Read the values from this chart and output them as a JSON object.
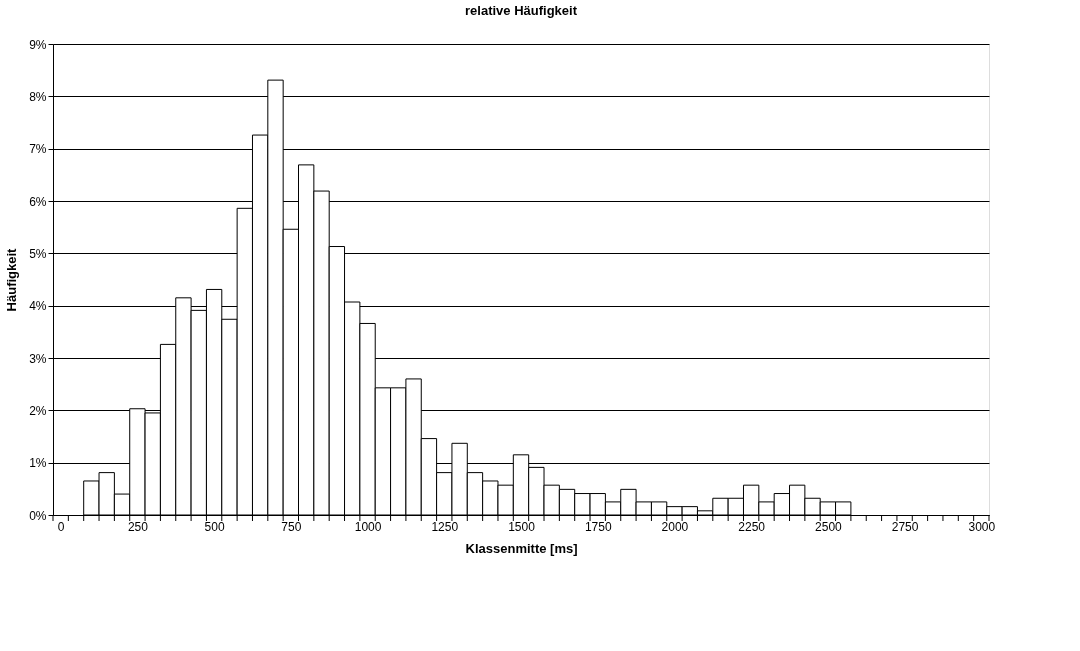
{
  "chart_data": {
    "type": "histogram",
    "title": "relative Häufigkeit",
    "xlabel": "Klassenmitte [ms]",
    "ylabel": "Häufigkeit",
    "bins": [
      -25,
      25,
      75,
      125,
      175,
      225,
      275,
      325,
      375,
      425,
      475,
      525,
      575,
      625,
      675,
      725,
      775,
      825,
      875,
      925,
      975,
      1025,
      1075,
      1125,
      1175,
      1225,
      1275,
      1325,
      1375,
      1425,
      1475,
      1525,
      1575,
      1625,
      1675,
      1725,
      1775,
      1825,
      1875,
      1925,
      1975,
      2025,
      2075,
      2125,
      2175,
      2225,
      2275,
      2325,
      2375,
      2425,
      2475,
      2525,
      2575,
      2625,
      2675,
      2725,
      2775,
      2825,
      2875,
      2925,
      2975,
      3025
    ],
    "values": [
      0,
      0,
      0.65,
      0.81,
      0.4,
      2.03,
      1.95,
      3.26,
      4.15,
      3.91,
      4.31,
      3.74,
      5.86,
      7.26,
      8.31,
      5.46,
      6.69,
      6.19,
      5.13,
      4.07,
      3.66,
      2.43,
      2.43,
      2.6,
      1.46,
      0.81,
      1.37,
      0.81,
      0.65,
      0.57,
      1.15,
      0.91,
      0.57,
      0.49,
      0.41,
      0.41,
      0.25,
      0.49,
      0.25,
      0.25,
      0.16,
      0.16,
      0.08,
      0.32,
      0.32,
      0.57,
      0.25,
      0.41,
      0.57,
      0.32,
      0.25,
      0.25,
      0,
      0,
      0,
      0,
      0,
      0,
      0,
      0,
      0
    ],
    "color": "#ffffff",
    "xlim": [
      -25,
      3025
    ],
    "xticks": [
      0,
      250,
      500,
      750,
      1000,
      1250,
      1500,
      1750,
      2000,
      2250,
      2500,
      2750,
      3000
    ],
    "ylim": [
      0,
      9
    ],
    "yticks": [
      {
        "value": 0,
        "label": "0%"
      },
      {
        "value": 1,
        "label": "1%"
      },
      {
        "value": 2,
        "label": "2%"
      },
      {
        "value": 3,
        "label": "3%"
      },
      {
        "value": 4,
        "label": "4%"
      },
      {
        "value": 5,
        "label": "5%"
      },
      {
        "value": 6,
        "label": "6%"
      },
      {
        "value": 7,
        "label": "7%"
      },
      {
        "value": 8,
        "label": "8%"
      },
      {
        "value": 9,
        "label": "9%"
      }
    ],
    "grid": "y"
  }
}
